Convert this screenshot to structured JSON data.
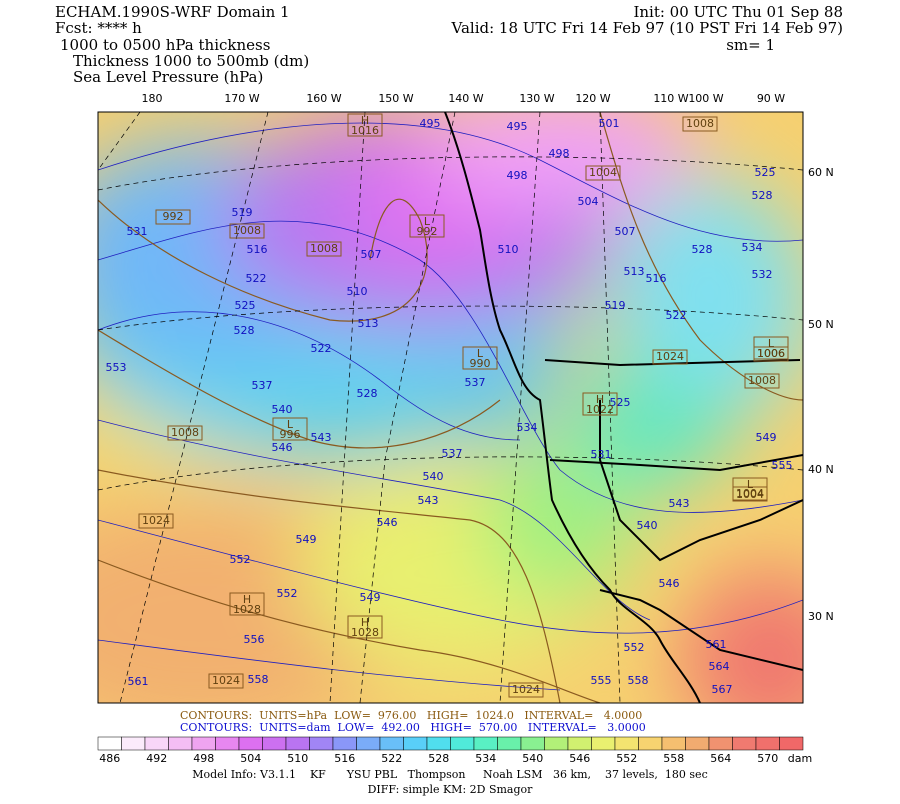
{
  "header": {
    "left": [
      "ECHAM.1990S-WRF Domain 1",
      "Fcst: **** h",
      "1000 to 0500 hPa thickness",
      "Thickness 1000 to 500mb (dm)",
      "Sea Level Pressure (hPa)"
    ],
    "right": [
      "Init: 00 UTC Thu 01 Sep 88",
      "Valid: 18 UTC Fri 14 Feb 97 (10 PST Fri 14 Feb 97)",
      "sm= 1"
    ]
  },
  "map": {
    "longitude_labels": [
      "180",
      "170 W",
      "160 W",
      "150 W",
      "140 W",
      "130 W",
      "120 W",
      "110 W",
      "100 W",
      "90 W"
    ],
    "latitude_labels": [
      "60 N",
      "50 N",
      "40 N",
      "30 N"
    ],
    "thickness_labels": [
      495,
      495,
      501,
      498,
      498,
      504,
      507,
      510,
      513,
      516,
      519,
      522,
      528,
      534,
      532,
      525,
      528,
      519,
      531,
      516,
      522,
      525,
      528,
      507,
      510,
      513,
      522,
      537,
      528,
      537,
      534,
      537,
      531,
      540,
      543,
      546,
      549,
      552,
      552,
      549,
      540,
      543,
      546,
      556,
      561,
      558,
      555,
      558,
      552,
      561,
      564,
      567,
      553,
      540,
      543,
      546,
      525,
      549,
      555
    ],
    "isobar_labels": [
      "1008",
      "1008",
      "992",
      "1008",
      "1024",
      "1008",
      "1004",
      "1024",
      "1006",
      "1008",
      "1004",
      "1024",
      "1024"
    ],
    "pressure_centers": [
      {
        "symbol": "H",
        "value": "1016"
      },
      {
        "symbol": "L",
        "value": "992"
      },
      {
        "symbol": "L",
        "value": "990"
      },
      {
        "symbol": "L",
        "value": "996"
      },
      {
        "symbol": "H",
        "value": "1022"
      },
      {
        "symbol": "H",
        "value": "1028"
      },
      {
        "symbol": "H",
        "value": "1028"
      },
      {
        "symbol": "L",
        "value": "1006"
      },
      {
        "symbol": "L",
        "value": "1004"
      }
    ]
  },
  "footer": {
    "contours": [
      "CONTOURS:  UNITS=hPa  LOW=  976.00   HIGH=  1024.0   INTERVAL=   4.0000",
      "CONTOURS:  UNITS=dam  LOW=  492.00   HIGH=  570.00   INTERVAL=   3.0000"
    ],
    "colorbar_labels": [
      486,
      492,
      498,
      504,
      510,
      516,
      522,
      528,
      534,
      540,
      546,
      552,
      558,
      564,
      570
    ],
    "colorbar_unit": "dam",
    "model_info": [
      "Model Info: V3.1.1    KF      YSU PBL   Thompson     Noah LSM   36 km,    37 levels,  180 sec",
      "DIFF: simple KM: 2D Smagor"
    ]
  }
}
